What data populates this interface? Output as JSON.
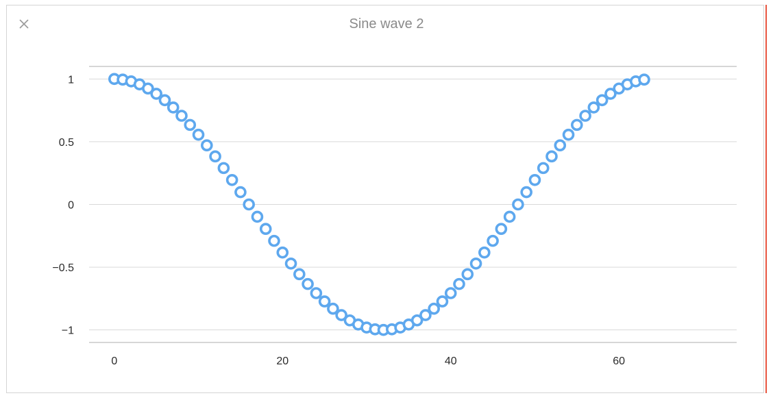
{
  "window": {
    "close_icon": "close-x-icon"
  },
  "chart_data": {
    "type": "scatter",
    "title": "Sine wave 2",
    "xlabel": "",
    "ylabel": "",
    "xlim": [
      -3,
      74
    ],
    "ylim": [
      -1.1,
      1.1
    ],
    "x_ticks": [
      0,
      20,
      40,
      60
    ],
    "x_tick_labels": [
      "0",
      "20",
      "40",
      "60"
    ],
    "y_ticks": [
      1,
      0.5,
      0,
      -0.5,
      -1
    ],
    "y_tick_labels": [
      "1",
      "0.5",
      "0",
      "−0.5",
      "−1"
    ],
    "grid": true,
    "series": [
      {
        "marker": "hollow-circle",
        "color": "#5ea8ee",
        "x": [
          0,
          1,
          2,
          3,
          4,
          5,
          6,
          7,
          8,
          9,
          10,
          11,
          12,
          13,
          14,
          15,
          16,
          17,
          18,
          19,
          20,
          21,
          22,
          23,
          24,
          25,
          26,
          27,
          28,
          29,
          30,
          31,
          32,
          33,
          34,
          35,
          36,
          37,
          38,
          39,
          40,
          41,
          42,
          43,
          44,
          45,
          46,
          47,
          48,
          49,
          50,
          51,
          52,
          53,
          54,
          55,
          56,
          57,
          58,
          59,
          60,
          61,
          62,
          63
        ],
        "y": [
          1.0,
          0.995,
          0.981,
          0.957,
          0.924,
          0.882,
          0.831,
          0.773,
          0.707,
          0.634,
          0.556,
          0.471,
          0.383,
          0.29,
          0.195,
          0.098,
          0.0,
          -0.098,
          -0.195,
          -0.29,
          -0.383,
          -0.471,
          -0.556,
          -0.634,
          -0.707,
          -0.773,
          -0.831,
          -0.882,
          -0.924,
          -0.957,
          -0.981,
          -0.995,
          -1.0,
          -0.995,
          -0.981,
          -0.957,
          -0.924,
          -0.882,
          -0.831,
          -0.773,
          -0.707,
          -0.634,
          -0.556,
          -0.471,
          -0.383,
          -0.29,
          -0.195,
          -0.098,
          0.0,
          0.098,
          0.195,
          0.29,
          0.383,
          0.471,
          0.556,
          0.634,
          0.707,
          0.773,
          0.831,
          0.882,
          0.924,
          0.957,
          0.981,
          0.995
        ]
      }
    ],
    "colors": {
      "grid": "#d9d9d9",
      "axis": "#bdbdbd",
      "marker_fill": "#ffffff"
    }
  }
}
